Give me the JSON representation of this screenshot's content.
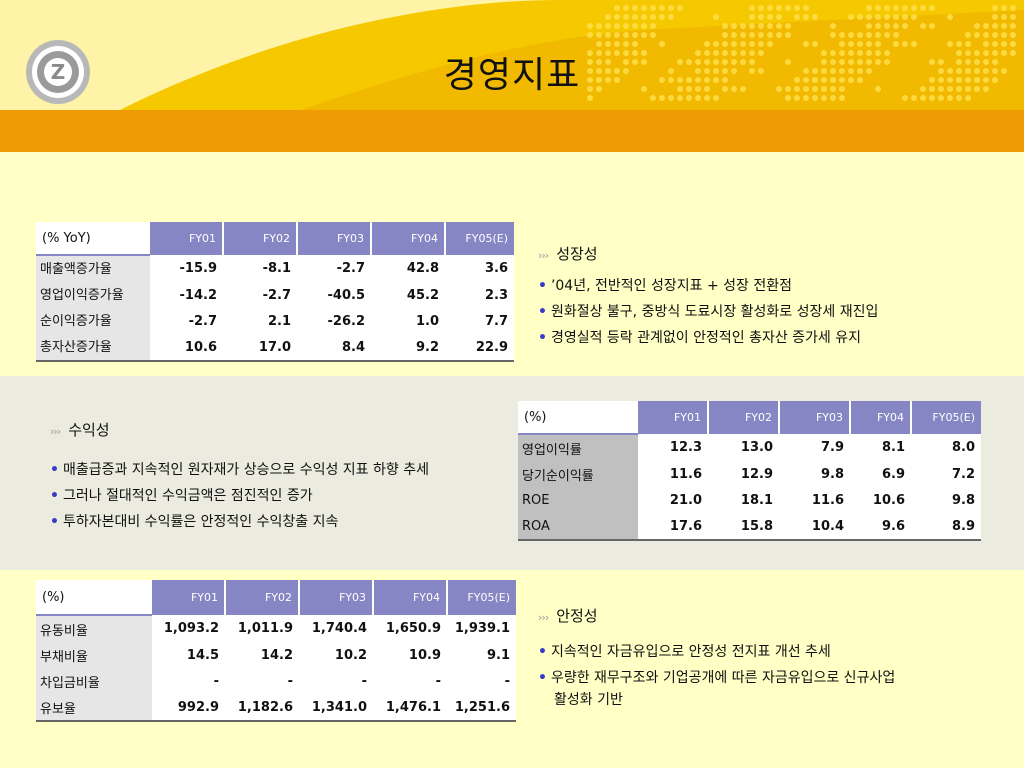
{
  "title": "경영지표",
  "growth_table": {
    "corner": "(% YoY)",
    "headers": [
      "FY01",
      "FY02",
      "FY03",
      "FY04",
      "FY05(E)"
    ],
    "rows": [
      {
        "label": "매출액증가율",
        "values": [
          "-15.9",
          "-8.1",
          "-2.7",
          "42.8",
          "3.6"
        ]
      },
      {
        "label": "영업이익증가율",
        "values": [
          "-14.2",
          "-2.7",
          "-40.5",
          "45.2",
          "2.3"
        ]
      },
      {
        "label": "순이익증가율",
        "values": [
          "-2.7",
          "2.1",
          "-26.2",
          "1.0",
          "7.7"
        ]
      },
      {
        "label": "총자산증가율",
        "values": [
          "10.6",
          "17.0",
          "8.4",
          "9.2",
          "22.9"
        ]
      }
    ]
  },
  "growth_panel": {
    "heading": "성장성",
    "bullets": [
      "’04년, 전반적인 성장지표 + 성장 전환점",
      "원화절상 불구, 중방식 도료시장 활성화로 성장세 재진입",
      "경영실적 등락 관계없이 안정적인 총자산 증가세 유지"
    ]
  },
  "profit_panel": {
    "heading": "수익성",
    "bullets": [
      "매출급증과 지속적인 원자재가 상승으로 수익성 지표 하향 추세",
      "그러나 절대적인 수익금액은 점진적인 증가",
      "투하자본대비 수익률은 안정적인 수익창출 지속"
    ]
  },
  "profit_table": {
    "corner": "(%)",
    "headers": [
      "FY01",
      "FY02",
      "FY03",
      "FY04",
      "FY05(E)"
    ],
    "rows": [
      {
        "label": "영업이익률",
        "values": [
          "12.3",
          "13.0",
          "7.9",
          "8.1",
          "8.0"
        ]
      },
      {
        "label": "당기순이익률",
        "values": [
          "11.6",
          "12.9",
          "9.8",
          "6.9",
          "7.2"
        ]
      },
      {
        "label": "ROE",
        "values": [
          "21.0",
          "18.1",
          "11.6",
          "10.6",
          "9.8"
        ]
      },
      {
        "label": "ROA",
        "values": [
          "17.6",
          "15.8",
          "10.4",
          "9.6",
          "8.9"
        ]
      }
    ]
  },
  "stability_table": {
    "corner": "(%)",
    "headers": [
      "FY01",
      "FY02",
      "FY03",
      "FY04",
      "FY05(E)"
    ],
    "rows": [
      {
        "label": "유동비율",
        "values": [
          "1,093.2",
          "1,011.9",
          "1,740.4",
          "1,650.9",
          "1,939.1"
        ]
      },
      {
        "label": "부채비율",
        "values": [
          "14.5",
          "14.2",
          "10.2",
          "10.9",
          "9.1"
        ]
      },
      {
        "label": "차입금비율",
        "values": [
          "-",
          "-",
          "-",
          "-",
          "-"
        ]
      },
      {
        "label": "유보율",
        "values": [
          "992.9",
          "1,182.6",
          "1,341.0",
          "1,476.1",
          "1,251.6"
        ]
      }
    ]
  },
  "stability_panel": {
    "heading": "안정성",
    "bullets": [
      "지속적인 자금유입으로 안정성 전지표  개선 추세",
      "우량한 재무구조와 기업공개에 따른 자금유입으로 신규사업"
    ],
    "continuation": "활성화 기반"
  },
  "colors": {
    "header_orange": "#ee9b06",
    "table_header": "#8686c4",
    "bullet_blue": "#3a3ac8",
    "background": "#ffffc6"
  }
}
